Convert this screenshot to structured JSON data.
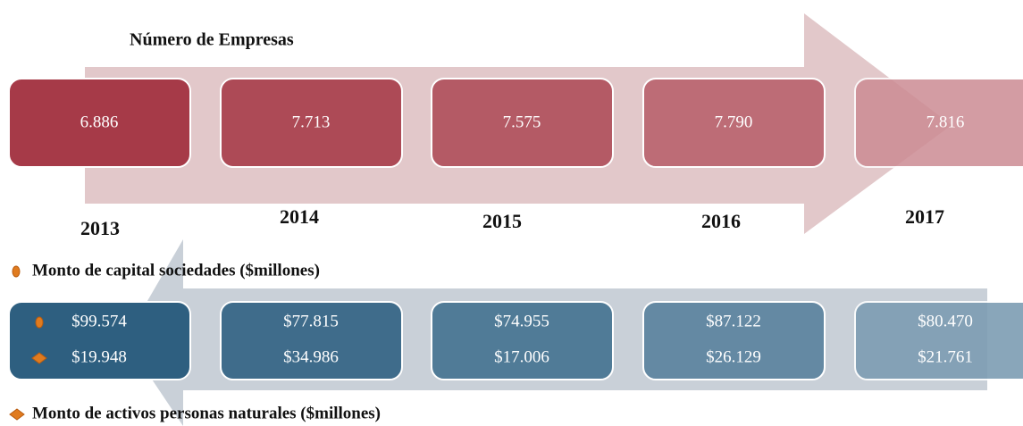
{
  "title": "Número de Empresas",
  "empresas": [
    "6.886",
    "7.713",
    "7.575",
    "7.790",
    "7.816"
  ],
  "years": [
    "2013",
    "2014",
    "2015",
    "2016",
    "2017"
  ],
  "capital_legend": "Monto de capital sociedades ($millones)",
  "capital": [
    "$99.574",
    "$77.815",
    "$74.955",
    "$87.122",
    "$80.470"
  ],
  "activos": [
    "$19.948",
    "$34.986",
    "$17.006",
    "$26.129",
    "$21.761"
  ],
  "activos_legend": "Monto de activos personas naturales ($millones)"
}
